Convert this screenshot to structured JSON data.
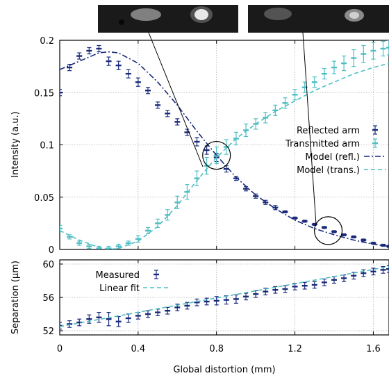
{
  "colors": {
    "reflected": "#1a2a7a",
    "transmitted": "#4dbec4"
  },
  "chart_data": [
    {
      "type": "line",
      "ylabel": "Intensity (a.u.)",
      "xlim": [
        0,
        1.68
      ],
      "ylim": [
        0,
        0.2
      ],
      "xticks": [
        0,
        0.4,
        0.8,
        1.2,
        1.6
      ],
      "yticks": [
        0,
        0.05,
        0.1,
        0.15,
        0.2
      ],
      "ytick_labels": [
        "0",
        "0.05",
        "0.1",
        "0.15",
        "0.2"
      ],
      "grid": true,
      "legend_position": "center-right",
      "series": [
        {
          "name": "Reflected arm",
          "style": "errorbar",
          "x": [
            0.0,
            0.05,
            0.1,
            0.15,
            0.2,
            0.25,
            0.3,
            0.35,
            0.4,
            0.45,
            0.5,
            0.55,
            0.6,
            0.65,
            0.7,
            0.75,
            0.8,
            0.85,
            0.9,
            0.95,
            1.0,
            1.05,
            1.1,
            1.15,
            1.2,
            1.25,
            1.3,
            1.35,
            1.4,
            1.45,
            1.5,
            1.55,
            1.6,
            1.65,
            1.68
          ],
          "y": [
            0.15,
            0.174,
            0.185,
            0.19,
            0.192,
            0.18,
            0.176,
            0.168,
            0.16,
            0.152,
            0.138,
            0.13,
            0.122,
            0.112,
            0.103,
            0.095,
            0.088,
            0.077,
            0.068,
            0.058,
            0.051,
            0.045,
            0.04,
            0.036,
            0.03,
            0.027,
            0.024,
            0.021,
            0.017,
            0.014,
            0.012,
            0.009,
            0.006,
            0.004,
            0.003
          ],
          "err": [
            0.003,
            0.003,
            0.003,
            0.003,
            0.003,
            0.004,
            0.004,
            0.004,
            0.004,
            0.003,
            0.003,
            0.003,
            0.003,
            0.003,
            0.004,
            0.004,
            0.004,
            0.003,
            0.002,
            0.002,
            0.002,
            0.002,
            0.002,
            0.001,
            0.001,
            0.001,
            0.001,
            0.001,
            0.001,
            0.001,
            0.001,
            0.001,
            0.001,
            0.001,
            0.001
          ]
        },
        {
          "name": "Transmitted arm",
          "style": "errorbar",
          "x": [
            0.0,
            0.05,
            0.1,
            0.15,
            0.2,
            0.25,
            0.3,
            0.35,
            0.4,
            0.45,
            0.5,
            0.55,
            0.6,
            0.65,
            0.7,
            0.75,
            0.8,
            0.85,
            0.9,
            0.95,
            1.0,
            1.05,
            1.1,
            1.15,
            1.2,
            1.25,
            1.3,
            1.35,
            1.4,
            1.45,
            1.5,
            1.55,
            1.6,
            1.65,
            1.68
          ],
          "y": [
            0.02,
            0.012,
            0.006,
            0.003,
            0.001,
            0.001,
            0.003,
            0.006,
            0.01,
            0.018,
            0.025,
            0.033,
            0.045,
            0.055,
            0.068,
            0.08,
            0.09,
            0.098,
            0.106,
            0.114,
            0.12,
            0.126,
            0.133,
            0.14,
            0.148,
            0.155,
            0.16,
            0.168,
            0.174,
            0.178,
            0.183,
            0.187,
            0.19,
            0.192,
            0.193
          ],
          "err": [
            0.003,
            0.002,
            0.002,
            0.002,
            0.002,
            0.002,
            0.002,
            0.002,
            0.003,
            0.003,
            0.004,
            0.005,
            0.006,
            0.007,
            0.007,
            0.008,
            0.008,
            0.007,
            0.006,
            0.006,
            0.005,
            0.005,
            0.005,
            0.005,
            0.005,
            0.005,
            0.005,
            0.005,
            0.006,
            0.007,
            0.008,
            0.008,
            0.008,
            0.007,
            0.007
          ]
        },
        {
          "name": "Model (refl.)",
          "style": "dash-dot",
          "x": [
            0.0,
            0.1,
            0.2,
            0.25,
            0.3,
            0.4,
            0.5,
            0.6,
            0.7,
            0.8,
            0.9,
            1.0,
            1.1,
            1.2,
            1.3,
            1.4,
            1.5,
            1.6,
            1.68
          ],
          "y": [
            0.172,
            0.18,
            0.188,
            0.189,
            0.188,
            0.178,
            0.16,
            0.138,
            0.113,
            0.09,
            0.069,
            0.052,
            0.039,
            0.028,
            0.02,
            0.014,
            0.009,
            0.005,
            0.003
          ]
        },
        {
          "name": "Model (trans.)",
          "style": "dashed",
          "x": [
            0.0,
            0.1,
            0.2,
            0.25,
            0.3,
            0.4,
            0.5,
            0.6,
            0.7,
            0.8,
            0.9,
            1.0,
            1.1,
            1.2,
            1.3,
            1.4,
            1.5,
            1.6,
            1.68
          ],
          "y": [
            0.018,
            0.009,
            0.002,
            0.0,
            0.001,
            0.008,
            0.022,
            0.042,
            0.066,
            0.088,
            0.106,
            0.12,
            0.132,
            0.142,
            0.152,
            0.16,
            0.168,
            0.174,
            0.178
          ]
        }
      ],
      "annotations": [
        {
          "type": "circle",
          "x": 0.8,
          "y": 0.09
        },
        {
          "type": "circle",
          "x": 1.37,
          "y": 0.018
        }
      ]
    },
    {
      "type": "line",
      "xlabel": "Global distortion (mm)",
      "ylabel": "Separation (μm)",
      "xlim": [
        0,
        1.68
      ],
      "ylim": [
        51.5,
        60.5
      ],
      "xticks": [
        0,
        0.4,
        0.8,
        1.2,
        1.6
      ],
      "xtick_labels": [
        "0",
        "0.4",
        "0.8",
        "1.2",
        "1.6"
      ],
      "yticks": [
        52,
        56,
        60
      ],
      "ytick_labels": [
        "52",
        "56",
        "60"
      ],
      "grid": true,
      "legend_position": "top-left",
      "series": [
        {
          "name": "Measured",
          "style": "errorbar",
          "x": [
            0.0,
            0.05,
            0.1,
            0.15,
            0.2,
            0.25,
            0.3,
            0.35,
            0.4,
            0.45,
            0.5,
            0.55,
            0.6,
            0.65,
            0.7,
            0.75,
            0.8,
            0.85,
            0.9,
            0.95,
            1.0,
            1.05,
            1.1,
            1.15,
            1.2,
            1.25,
            1.3,
            1.35,
            1.4,
            1.45,
            1.5,
            1.55,
            1.6,
            1.65,
            1.68
          ],
          "y": [
            52.6,
            52.8,
            53.0,
            53.4,
            53.6,
            53.4,
            53.1,
            53.5,
            53.8,
            54.0,
            54.2,
            54.4,
            54.8,
            55.0,
            55.4,
            55.5,
            55.6,
            55.7,
            55.8,
            56.1,
            56.4,
            56.7,
            56.9,
            57.0,
            57.3,
            57.4,
            57.5,
            57.8,
            58.1,
            58.3,
            58.6,
            58.9,
            59.1,
            59.3,
            59.4
          ],
          "err": [
            0.4,
            0.4,
            0.4,
            0.5,
            0.6,
            0.8,
            0.6,
            0.5,
            0.4,
            0.4,
            0.4,
            0.4,
            0.4,
            0.4,
            0.4,
            0.4,
            0.5,
            0.5,
            0.5,
            0.4,
            0.4,
            0.4,
            0.4,
            0.4,
            0.4,
            0.4,
            0.4,
            0.4,
            0.4,
            0.4,
            0.4,
            0.4,
            0.4,
            0.4,
            0.4
          ]
        },
        {
          "name": "Linear fit",
          "style": "dashed",
          "x": [
            0,
            1.68
          ],
          "y": [
            52.5,
            59.7
          ]
        }
      ]
    }
  ]
}
